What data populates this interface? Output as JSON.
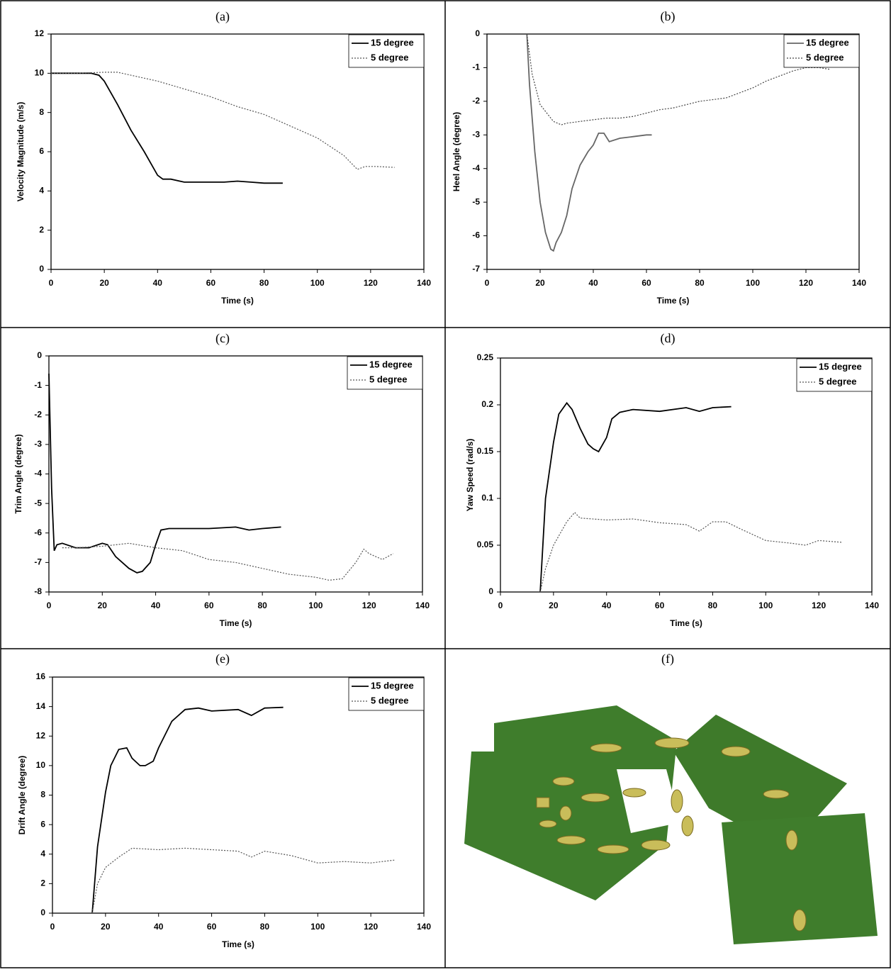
{
  "chart_data": [
    {
      "type": "line",
      "title": "(a)",
      "x_label": "Time (s)",
      "y_label": "Velocity Magnitude (m/s)",
      "xlim": [
        0,
        140
      ],
      "xticks": [
        0,
        20,
        40,
        60,
        80,
        100,
        120,
        140
      ],
      "ylim": [
        0,
        12
      ],
      "yticks": [
        0,
        2,
        4,
        6,
        8,
        10,
        12
      ],
      "legend": "upper right",
      "series": [
        {
          "name": "15 degree",
          "color": "#000000",
          "line_style": "solid",
          "x": [
            0,
            10,
            15,
            18,
            20,
            25,
            30,
            35,
            40,
            42,
            45,
            50,
            55,
            60,
            65,
            70,
            75,
            80,
            87
          ],
          "values": [
            10,
            10,
            10,
            9.9,
            9.6,
            8.4,
            7.1,
            6.0,
            4.8,
            4.6,
            4.6,
            4.45,
            4.45,
            4.45,
            4.45,
            4.5,
            4.45,
            4.4,
            4.4
          ]
        },
        {
          "name": "5 degree",
          "color": "#555555",
          "line_style": "dotted",
          "x": [
            0,
            10,
            20,
            25,
            30,
            40,
            50,
            60,
            70,
            80,
            90,
            100,
            110,
            115,
            118,
            122,
            129
          ],
          "values": [
            10,
            10,
            10.05,
            10.05,
            9.9,
            9.6,
            9.2,
            8.8,
            8.3,
            7.9,
            7.3,
            6.7,
            5.8,
            5.1,
            5.25,
            5.25,
            5.2
          ]
        }
      ]
    },
    {
      "type": "line",
      "title": "(b)",
      "x_label": "Time (s)",
      "y_label": "Heel Angle (degree)",
      "xlim": [
        0,
        140
      ],
      "xticks": [
        0,
        20,
        40,
        60,
        80,
        100,
        120,
        140
      ],
      "ylim": [
        -7,
        0
      ],
      "yticks": [
        -7,
        -6,
        -5,
        -4,
        -3,
        -2,
        -1,
        0
      ],
      "legend": "upper right",
      "series": [
        {
          "name": "15 degree",
          "color": "#666666",
          "line_style": "solid",
          "x": [
            15,
            16,
            18,
            20,
            22,
            24,
            25,
            26,
            28,
            30,
            32,
            35,
            38,
            40,
            42,
            44,
            46,
            50,
            55,
            60,
            62
          ],
          "values": [
            0,
            -1.5,
            -3.5,
            -5,
            -5.9,
            -6.4,
            -6.45,
            -6.2,
            -5.9,
            -5.4,
            -4.6,
            -3.9,
            -3.5,
            -3.3,
            -2.95,
            -2.95,
            -3.2,
            -3.1,
            -3.05,
            -3.0,
            -3.0
          ]
        },
        {
          "name": "5 degree",
          "color": "#444444",
          "line_style": "dotted",
          "x": [
            15,
            17,
            20,
            25,
            28,
            30,
            35,
            40,
            45,
            50,
            55,
            60,
            65,
            70,
            75,
            80,
            85,
            90,
            95,
            100,
            105,
            110,
            115,
            120,
            125,
            129
          ],
          "values": [
            0,
            -1.2,
            -2.1,
            -2.6,
            -2.7,
            -2.65,
            -2.6,
            -2.55,
            -2.5,
            -2.5,
            -2.45,
            -2.35,
            -2.25,
            -2.2,
            -2.1,
            -2.0,
            -1.95,
            -1.9,
            -1.75,
            -1.6,
            -1.4,
            -1.25,
            -1.1,
            -1.0,
            -1.0,
            -1.05
          ]
        }
      ]
    },
    {
      "type": "line",
      "title": "(c)",
      "x_label": "Time (s)",
      "y_label": "Trim Angle (degree)",
      "xlim": [
        0,
        140
      ],
      "xticks": [
        0,
        20,
        40,
        60,
        80,
        100,
        120,
        140
      ],
      "ylim": [
        -8,
        0
      ],
      "yticks": [
        -8,
        -7,
        -6,
        -5,
        -4,
        -3,
        -2,
        -1,
        0
      ],
      "legend": "upper right",
      "series": [
        {
          "name": "15 degree",
          "color": "#000000",
          "line_style": "solid",
          "x": [
            0,
            1,
            2,
            3,
            5,
            10,
            15,
            20,
            22,
            25,
            30,
            33,
            35,
            38,
            40,
            42,
            45,
            50,
            60,
            70,
            75,
            80,
            87
          ],
          "values": [
            -0.6,
            -4.5,
            -6.6,
            -6.4,
            -6.35,
            -6.5,
            -6.5,
            -6.35,
            -6.4,
            -6.8,
            -7.2,
            -7.35,
            -7.3,
            -7.0,
            -6.4,
            -5.9,
            -5.85,
            -5.85,
            -5.85,
            -5.8,
            -5.9,
            -5.85,
            -5.8
          ]
        },
        {
          "name": "5 degree",
          "color": "#555555",
          "line_style": "dotted",
          "x": [
            5,
            10,
            20,
            30,
            40,
            50,
            60,
            70,
            80,
            90,
            100,
            105,
            110,
            115,
            118,
            120,
            125,
            129
          ],
          "values": [
            -6.5,
            -6.5,
            -6.45,
            -6.35,
            -6.5,
            -6.6,
            -6.9,
            -7.0,
            -7.2,
            -7.4,
            -7.5,
            -7.6,
            -7.55,
            -7.0,
            -6.55,
            -6.7,
            -6.9,
            -6.7
          ]
        }
      ]
    },
    {
      "type": "line",
      "title": "(d)",
      "x_label": "Time (s)",
      "y_label": "Yaw Speed (rad/s)",
      "xlim": [
        0,
        140
      ],
      "xticks": [
        0,
        20,
        40,
        60,
        80,
        100,
        120,
        140
      ],
      "ylim": [
        0,
        0.25
      ],
      "yticks": [
        0,
        0.05,
        0.1,
        0.15,
        0.2,
        0.25
      ],
      "legend": "upper right",
      "series": [
        {
          "name": "15 degree",
          "color": "#000000",
          "line_style": "solid",
          "x": [
            15,
            17,
            20,
            22,
            25,
            27,
            30,
            33,
            35,
            37,
            40,
            42,
            45,
            50,
            60,
            70,
            75,
            80,
            87
          ],
          "values": [
            0,
            0.1,
            0.16,
            0.19,
            0.202,
            0.195,
            0.175,
            0.158,
            0.153,
            0.15,
            0.165,
            0.185,
            0.192,
            0.195,
            0.193,
            0.197,
            0.193,
            0.197,
            0.198
          ]
        },
        {
          "name": "5 degree",
          "color": "#555555",
          "line_style": "dotted",
          "x": [
            15,
            17,
            20,
            25,
            28,
            30,
            40,
            50,
            60,
            70,
            75,
            80,
            85,
            90,
            100,
            110,
            115,
            120,
            129
          ],
          "values": [
            0,
            0.025,
            0.05,
            0.075,
            0.085,
            0.079,
            0.077,
            0.078,
            0.074,
            0.072,
            0.065,
            0.075,
            0.075,
            0.068,
            0.055,
            0.052,
            0.05,
            0.055,
            0.053
          ]
        }
      ]
    },
    {
      "type": "line",
      "title": "(e)",
      "x_label": "Time (s)",
      "y_label": "Drift Angle (degree)",
      "xlim": [
        0,
        140
      ],
      "xticks": [
        0,
        20,
        40,
        60,
        80,
        100,
        120,
        140
      ],
      "ylim": [
        0,
        16
      ],
      "yticks": [
        0,
        2,
        4,
        6,
        8,
        10,
        12,
        14,
        16
      ],
      "legend": "upper right",
      "series": [
        {
          "name": "15 degree",
          "color": "#000000",
          "line_style": "solid",
          "x": [
            15,
            17,
            20,
            22,
            25,
            28,
            30,
            33,
            35,
            38,
            40,
            45,
            50,
            55,
            60,
            70,
            75,
            80,
            87
          ],
          "values": [
            0,
            4.5,
            8.2,
            10,
            11.1,
            11.2,
            10.5,
            10.0,
            10.0,
            10.3,
            11.2,
            13.0,
            13.8,
            13.9,
            13.7,
            13.8,
            13.4,
            13.9,
            13.95
          ]
        },
        {
          "name": "5 degree",
          "color": "#555555",
          "line_style": "dotted",
          "x": [
            15,
            17,
            20,
            25,
            30,
            40,
            50,
            60,
            70,
            75,
            80,
            90,
            100,
            110,
            120,
            129
          ],
          "values": [
            0,
            2.0,
            3.1,
            3.8,
            4.4,
            4.3,
            4.4,
            4.3,
            4.2,
            3.8,
            4.2,
            3.9,
            3.4,
            3.5,
            3.4,
            3.6
          ]
        }
      ]
    }
  ],
  "image_panel": {
    "label": "(f)"
  }
}
